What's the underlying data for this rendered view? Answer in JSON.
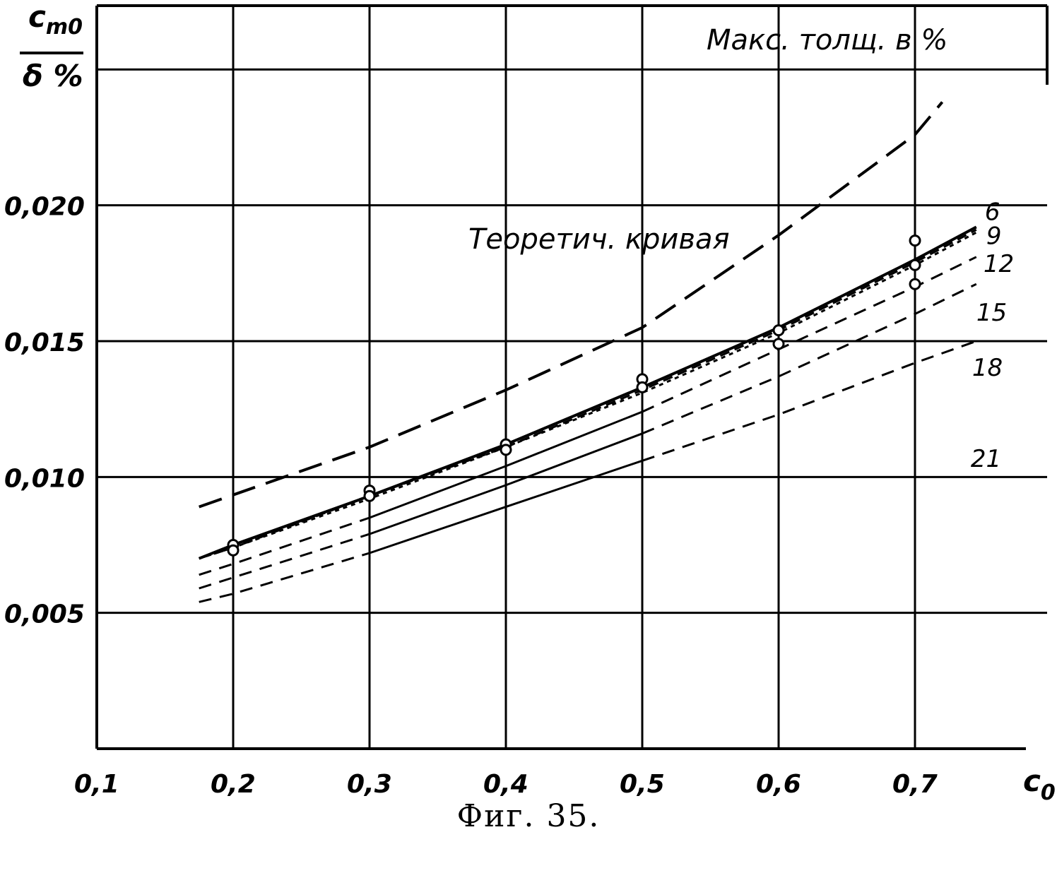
{
  "caption": "Фиг. 35.",
  "chart_data": {
    "type": "line",
    "title": "",
    "ylabel_top": "c",
    "ylabel_top_sub": "m0",
    "ylabel_bottom": "δ %",
    "xlabel": "c",
    "xlabel_sub": "0",
    "xlim": [
      0.1,
      0.76
    ],
    "ylim": [
      0.0,
      0.0275
    ],
    "grid": true,
    "x_ticks": [
      {
        "value": 0.1,
        "label": "0,1"
      },
      {
        "value": 0.2,
        "label": "0,2"
      },
      {
        "value": 0.3,
        "label": "0,3"
      },
      {
        "value": 0.4,
        "label": "0,4"
      },
      {
        "value": 0.5,
        "label": "0,5"
      },
      {
        "value": 0.6,
        "label": "0,6"
      },
      {
        "value": 0.7,
        "label": "0,7"
      }
    ],
    "y_ticks": [
      {
        "value": 0.005,
        "label": "0,005"
      },
      {
        "value": 0.01,
        "label": "0,010"
      },
      {
        "value": 0.015,
        "label": "0,015"
      },
      {
        "value": 0.02,
        "label": "0,020"
      }
    ],
    "extra_gridlines_y": [
      0.025
    ],
    "legend_title": "Макс. толщ. в %",
    "theory_label": "Теоретич. кривая",
    "theory": {
      "x": [
        0.175,
        0.3,
        0.4,
        0.5,
        0.6,
        0.7,
        0.72
      ],
      "y": [
        0.0089,
        0.0111,
        0.0132,
        0.0155,
        0.0189,
        0.0226,
        0.0238
      ]
    },
    "series": [
      {
        "name": "6",
        "x": [
          0.175,
          0.2,
          0.3,
          0.4,
          0.5,
          0.6,
          0.7,
          0.745
        ],
        "y": [
          0.007,
          0.0075,
          0.0093,
          0.0112,
          0.0133,
          0.0155,
          0.018,
          0.0192
        ]
      },
      {
        "name": "9",
        "x": [
          0.175,
          0.2,
          0.3,
          0.4,
          0.5,
          0.6,
          0.7,
          0.745
        ],
        "y": [
          0.007,
          0.0074,
          0.0093,
          0.0111,
          0.0132,
          0.0154,
          0.0179,
          0.0191
        ]
      },
      {
        "name": "12",
        "x": [
          0.175,
          0.2,
          0.3,
          0.4,
          0.5,
          0.6,
          0.7,
          0.745
        ],
        "y": [
          0.007,
          0.0074,
          0.0092,
          0.0111,
          0.0131,
          0.0153,
          0.0178,
          0.019
        ]
      },
      {
        "name": "15",
        "x": [
          0.175,
          0.2,
          0.3,
          0.4,
          0.5,
          0.6,
          0.7,
          0.745
        ],
        "y": [
          0.0064,
          0.0068,
          0.0085,
          0.0104,
          0.0124,
          0.0147,
          0.017,
          0.0181
        ]
      },
      {
        "name": "18",
        "x": [
          0.175,
          0.2,
          0.3,
          0.4,
          0.5,
          0.6,
          0.7,
          0.745
        ],
        "y": [
          0.0059,
          0.0063,
          0.0079,
          0.0097,
          0.0116,
          0.0137,
          0.016,
          0.0171
        ]
      },
      {
        "name": "21",
        "x": [
          0.175,
          0.2,
          0.3,
          0.4,
          0.5,
          0.6,
          0.7,
          0.745
        ],
        "y": [
          0.0054,
          0.0057,
          0.0072,
          0.0089,
          0.0106,
          0.0123,
          0.0142,
          0.015
        ]
      }
    ],
    "points": [
      {
        "x": 0.2,
        "y": 0.0075
      },
      {
        "x": 0.2,
        "y": 0.0073
      },
      {
        "x": 0.3,
        "y": 0.0095
      },
      {
        "x": 0.3,
        "y": 0.0093
      },
      {
        "x": 0.4,
        "y": 0.0112
      },
      {
        "x": 0.4,
        "y": 0.011
      },
      {
        "x": 0.5,
        "y": 0.0136
      },
      {
        "x": 0.5,
        "y": 0.0133
      },
      {
        "x": 0.6,
        "y": 0.0154
      },
      {
        "x": 0.6,
        "y": 0.0149
      },
      {
        "x": 0.7,
        "y": 0.0187
      },
      {
        "x": 0.7,
        "y": 0.0178
      },
      {
        "x": 0.7,
        "y": 0.0171
      }
    ]
  }
}
